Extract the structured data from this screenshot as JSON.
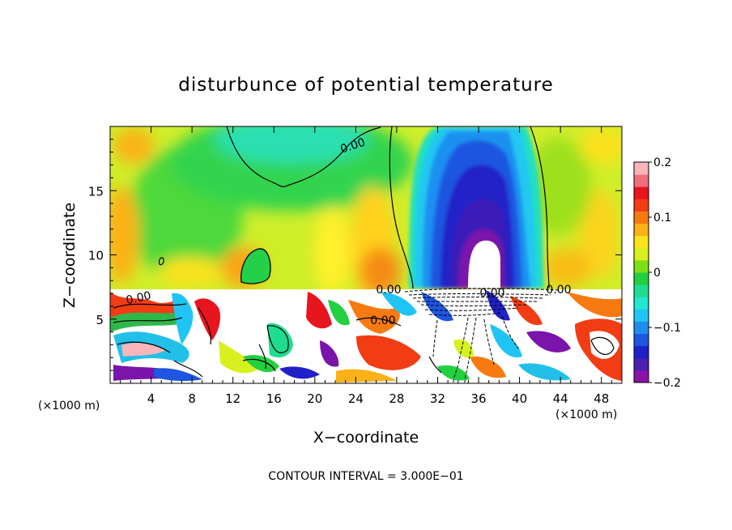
{
  "chart_data": {
    "type": "heatmap",
    "title": "disturbunce of potential temperature",
    "xlabel": "X−coordinate",
    "ylabel": "Z−coordinate",
    "x_unit": "(×1000 m)",
    "x_unit_right": "(×1000 m)",
    "xlim": [
      0,
      50
    ],
    "ylim": [
      0,
      20
    ],
    "x_ticks": [
      4,
      8,
      12,
      16,
      20,
      24,
      28,
      32,
      36,
      40,
      44,
      48
    ],
    "y_ticks": [
      5,
      10,
      15
    ],
    "colorbar": {
      "range": [
        -0.2,
        0.2
      ],
      "tick_labels": [
        "0.2",
        "0.1",
        "0",
        "−0.1",
        "−0.2"
      ],
      "tick_values": [
        0.2,
        0.1,
        0,
        -0.1,
        -0.2
      ],
      "colors": [
        "#8b12a8",
        "#4b1fb0",
        "#2020c8",
        "#1e56e0",
        "#1e8ef0",
        "#20c4f4",
        "#20e6d2",
        "#20dc90",
        "#22d040",
        "#7ce014",
        "#d8f020",
        "#fde21c",
        "#fbb216",
        "#f77a10",
        "#f23c14",
        "#e8141e",
        "#f06e7a",
        "#f8b6ba"
      ]
    },
    "contour_labels": [
      "0.00",
      "0.00",
      "0.00",
      "0.00",
      "0.00",
      "0.00"
    ],
    "contour_interval_text": "CONTOUR INTERVAL = 3.000E−01",
    "grid": false
  }
}
